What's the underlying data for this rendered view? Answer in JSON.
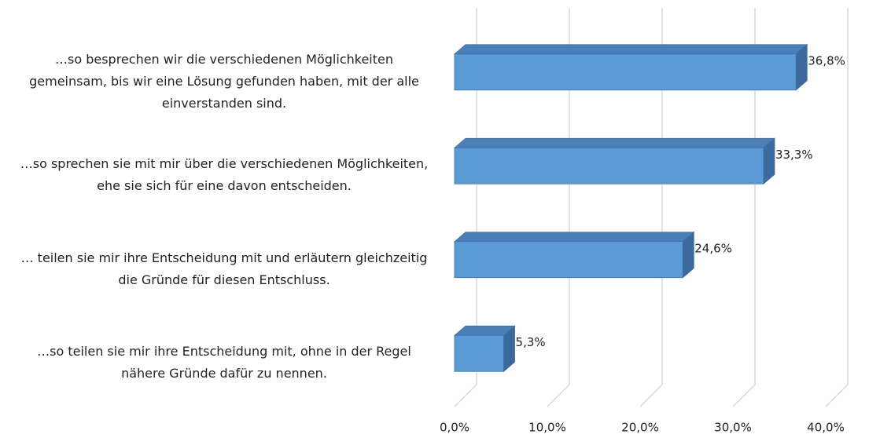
{
  "chart_data": {
    "type": "bar",
    "orientation": "horizontal",
    "3d": true,
    "categories": [
      "…so besprechen wir die verschiedenen Möglichkeiten gemeinsam, bis wir eine Lösung gefunden haben, mit der alle einverstanden sind.",
      "…so sprechen sie mit mir über die verschiedenen Möglichkeiten, ehe sie sich für eine davon entscheiden.",
      "… teilen sie mir ihre Entscheidung mit und erläutern gleichzeitig die Gründe für diesen Entschluss.",
      "…so teilen sie mir ihre Entscheidung mit, ohne in der Regel nähere Gründe dafür zu nennen."
    ],
    "values": [
      36.8,
      33.3,
      24.6,
      5.3
    ],
    "value_labels": [
      "36,8%",
      "33,3%",
      "24,6%",
      "5,3%"
    ],
    "color": "#5b9bd5",
    "xlim": [
      0,
      40
    ],
    "xticks": [
      {
        "value": 0,
        "label": "0,0%"
      },
      {
        "value": 10,
        "label": "10,0%"
      },
      {
        "value": 20,
        "label": "20,0%"
      },
      {
        "value": 30,
        "label": "30,0%"
      },
      {
        "value": 40,
        "label": "40,0%"
      }
    ],
    "grid": true
  }
}
